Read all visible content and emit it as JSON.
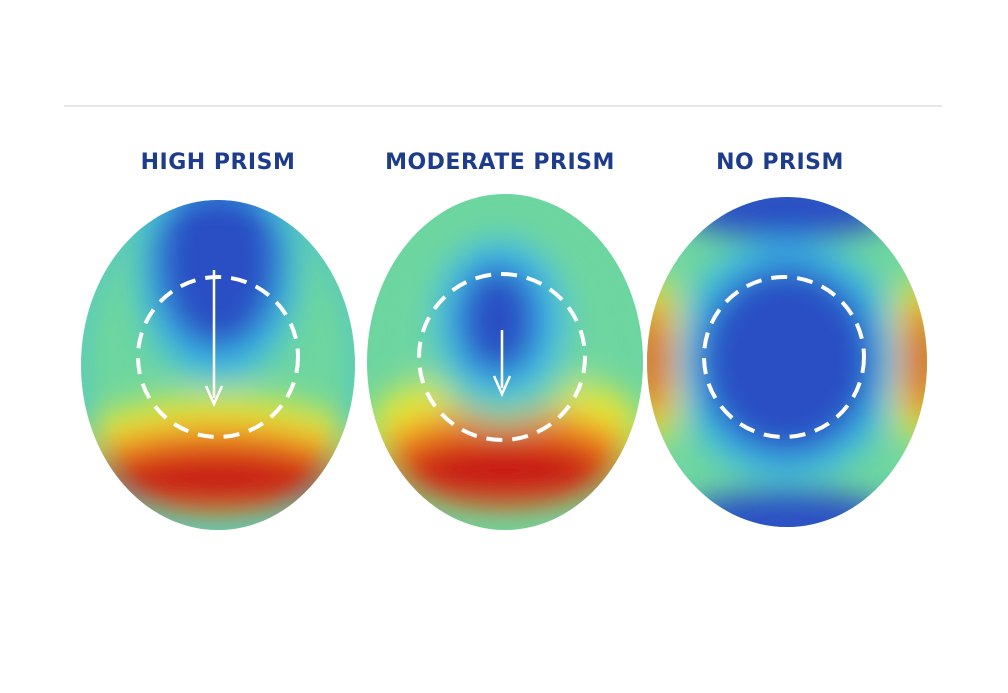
{
  "panels": [
    {
      "id": "high",
      "title": "HIGH PRISM"
    },
    {
      "id": "moderate",
      "title": "MODERATE PRISM"
    },
    {
      "id": "none",
      "title": "NO PRISM"
    }
  ],
  "colors": {
    "title": "#1e3c8c",
    "low": "#2a4fc4",
    "mid_low": "#3ab8e8",
    "mid": "#6ed6a0",
    "mid_high": "#e6e838",
    "high_warm": "#f07a1a",
    "peak": "#c81414",
    "dashed_circle": "#ffffff",
    "arrow": "#ffffff"
  }
}
